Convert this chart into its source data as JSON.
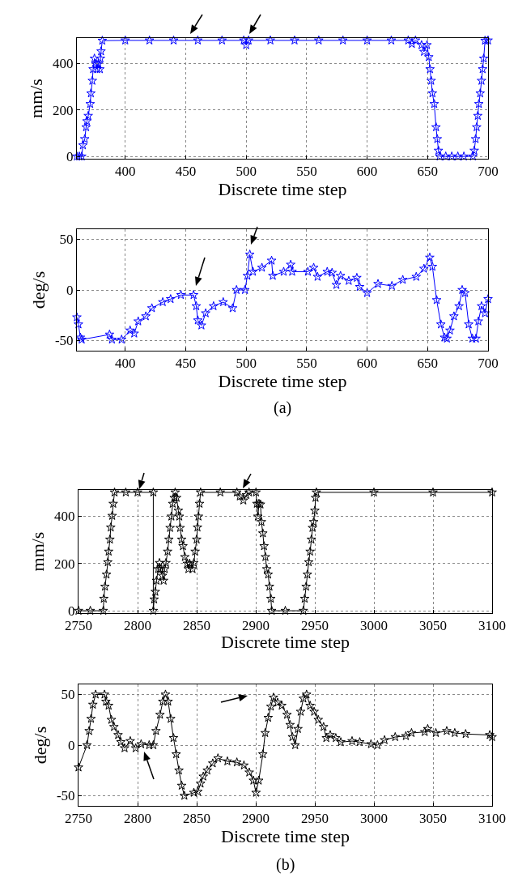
{
  "chart_data": [
    {
      "type": "line",
      "xlabel": "Discrete time step",
      "ylabel": "mm/s",
      "xlim": [
        360,
        700
      ],
      "xticks": [
        400,
        450,
        500,
        550,
        600,
        650,
        700
      ],
      "ylim": [
        -10,
        510
      ],
      "yticks": [
        0,
        200,
        400
      ],
      "grid": true,
      "marker": "star",
      "line_style": "solid",
      "series": [
        {
          "color": "#0000ff",
          "x": [
            360,
            362,
            364,
            365,
            366.5,
            367.6,
            368.3,
            369.4,
            371,
            371.6,
            372.8,
            373.4,
            374.5,
            375.7,
            376.8,
            377.7,
            379,
            379.5,
            380,
            381,
            400,
            420,
            440,
            460,
            480,
            498,
            500,
            502,
            520,
            540,
            560,
            580,
            600,
            620,
            634,
            637,
            640,
            645,
            647,
            649.5,
            651,
            652,
            653,
            654,
            655.5,
            657,
            658,
            659,
            660,
            665,
            670,
            675,
            680,
            687.5,
            688.6,
            689.7,
            690.6,
            691.5,
            692.4,
            693.5,
            694.6,
            695.5,
            696.4,
            697.5,
            700
          ],
          "values": [
            0,
            0,
            0,
            48,
            75,
            126,
            152,
            175,
            226,
            272,
            326,
            376,
            422,
            399,
            376,
            399,
            376,
            422,
            453,
            499,
            500,
            500,
            500,
            500,
            500,
            500,
            480,
            500,
            500,
            500,
            500,
            500,
            500,
            500,
            500,
            485,
            500,
            480,
            451,
            480,
            428,
            376,
            326,
            272,
            226,
            126,
            75,
            25,
            0,
            0,
            0,
            0,
            0,
            0,
            25,
            75,
            126,
            175,
            226,
            272,
            326,
            376,
            422,
            499,
            500
          ]
        }
      ]
    },
    {
      "type": "line",
      "xlabel": "Discrete time step",
      "ylabel": "deg/s",
      "xlim": [
        360,
        700
      ],
      "xticks": [
        400,
        450,
        500,
        550,
        600,
        650,
        700
      ],
      "ylim": [
        -60,
        60
      ],
      "yticks": [
        -50,
        0,
        50
      ],
      "grid": true,
      "marker": "star",
      "line_style": "solid",
      "series": [
        {
          "color": "#0000ff",
          "x": [
            360,
            361.3,
            362.9,
            364,
            387,
            389,
            397,
            404,
            407.4,
            410.7,
            417,
            422,
            431,
            437.5,
            446,
            456.5,
            458.7,
            460,
            463,
            466.5,
            473,
            481,
            488.8,
            492,
            499,
            501,
            503,
            505.6,
            513,
            521,
            522,
            531,
            536.8,
            538,
            551,
            555.8,
            559,
            567,
            571,
            574.6,
            578,
            584.8,
            591.5,
            593.8,
            600,
            609,
            620.5,
            629.5,
            640.6,
            647,
            651.8,
            654,
            657.5,
            661,
            664,
            666,
            668.5,
            671.8,
            676,
            678.6,
            681,
            684,
            687,
            690,
            692,
            694.6,
            697.5,
            700
          ],
          "values": [
            -27,
            -34,
            -47,
            -49,
            -44,
            -49,
            -49,
            -40,
            -43,
            -31,
            -26,
            -18,
            -12,
            -9,
            -5,
            -5,
            -16,
            -30,
            -35,
            -23,
            -16,
            -12,
            -18,
            0,
            0,
            14,
            35,
            18,
            22,
            29,
            14,
            18,
            25,
            18,
            18,
            22,
            13,
            18,
            17,
            5,
            14,
            9,
            12,
            3,
            -3,
            6,
            4,
            10,
            13,
            21,
            32,
            23,
            -10,
            -34,
            -47,
            -48,
            -40,
            -26,
            -16,
            0,
            -3,
            -34,
            -48,
            -48,
            -31,
            -16,
            -23,
            -9
          ]
        }
      ],
      "annotations": [
        "(a)"
      ]
    },
    {
      "type": "line",
      "xlabel": "Discrete time step",
      "ylabel": "mm/s",
      "xlim": [
        2750,
        3100
      ],
      "xticks": [
        2750,
        2800,
        2850,
        2900,
        2950,
        3000,
        3050,
        3100
      ],
      "ylim": [
        -10,
        510
      ],
      "yticks": [
        0,
        200,
        400
      ],
      "grid": true,
      "marker": "star",
      "line_style": "solid",
      "series": [
        {
          "color": "#000000",
          "x": [
            2750,
            2760,
            2771,
            2771.4,
            2772.4,
            2773.7,
            2774.8,
            2775.5,
            2776.6,
            2777.3,
            2778.5,
            2779.4,
            2780.5,
            2790,
            2800,
            2813.3,
            2813.3,
            2814,
            2815,
            2816,
            2817.4,
            2818.5,
            2819.4,
            2821,
            2822,
            2823,
            2824,
            2825.4,
            2826.5,
            2827.5,
            2828.6,
            2829.7,
            2831,
            2831.8,
            2833,
            2834.5,
            2835.3,
            2836,
            2837.3,
            2838.4,
            2840,
            2842,
            2843,
            2844,
            2846.5,
            2847.6,
            2848.7,
            2850,
            2850.7,
            2851.5,
            2852.4,
            2853.3,
            2870,
            2884,
            2886.5,
            2889.5,
            2892,
            2894.3,
            2900.2,
            2900.9,
            2901.8,
            2902.7,
            2904,
            2904.8,
            2906,
            2907,
            2908.2,
            2909.3,
            2910.5,
            2911.6,
            2912.8,
            2913.5,
            2925,
            2940.3,
            2941.4,
            2942.6,
            2943.7,
            2944.8,
            2946,
            2947.1,
            2948,
            2949,
            2950,
            2950.6,
            2951.3,
            3000,
            3050,
            3100
          ],
          "values": [
            0,
            0,
            0,
            51,
            102,
            153,
            205,
            250,
            301,
            352,
            401,
            452,
            500,
            500,
            500,
            500,
            0,
            48,
            80,
            127,
            176,
            202,
            176,
            148,
            127,
            176,
            202,
            250,
            301,
            350,
            398,
            452,
            477,
            500,
            477,
            423,
            398,
            350,
            301,
            273,
            227,
            199,
            176,
            199,
            176,
            202,
            250,
            301,
            352,
            398,
            452,
            500,
            500,
            500,
            483,
            466,
            489,
            500,
            500,
            452,
            398,
            452,
            449,
            375,
            327,
            273,
            227,
            176,
            153,
            102,
            51,
            0,
            0,
            0,
            51,
            102,
            153,
            205,
            250,
            301,
            350,
            375,
            423,
            477,
            500,
            500,
            500,
            500
          ]
        }
      ]
    },
    {
      "type": "line",
      "xlabel": "Discrete time step",
      "ylabel": "deg/s",
      "xlim": [
        2750,
        3100
      ],
      "xticks": [
        2750,
        2800,
        2850,
        2900,
        2950,
        3000,
        3050,
        3100
      ],
      "ylim": [
        -60,
        60
      ],
      "yticks": [
        -50,
        0,
        50
      ],
      "grid": true,
      "marker": "star",
      "line_style": "solid",
      "series": [
        {
          "color": "#000000",
          "x": [
            2750,
            2757.2,
            2759,
            2760.6,
            2762.2,
            2764.5,
            2772,
            2773.2,
            2775.5,
            2777.8,
            2780,
            2783.5,
            2785.8,
            2789,
            2793.8,
            2798.4,
            2803,
            2809.8,
            2813.3,
            2815.6,
            2819,
            2821.3,
            2823.6,
            2825.9,
            2828,
            2830.4,
            2832.7,
            2835,
            2837.3,
            2839.6,
            2847.6,
            2851,
            2853.3,
            2855.6,
            2859,
            2863.6,
            2868,
            2876,
            2884,
            2890,
            2894.5,
            2898,
            2900.2,
            2902.5,
            2906,
            2908,
            2910.5,
            2912.8,
            2915,
            2918.5,
            2922,
            2926.5,
            2929,
            2931,
            2933.4,
            2935.7,
            2938,
            2940.3,
            2943,
            2946,
            2949.4,
            2952.9,
            2957.4,
            2959.7,
            2963,
            2967.7,
            2972,
            2981.5,
            2988,
            2997.5,
            3003,
            3009,
            3018,
            3027,
            3031.8,
            3043,
            3045.5,
            3052.4,
            3061.6,
            3068.4,
            3077.6,
            3098,
            3100
          ],
          "values": [
            -22,
            0,
            14,
            26,
            40,
            50,
            50,
            43,
            39,
            25,
            18,
            10,
            3,
            -3,
            4,
            -3,
            1,
            0,
            0,
            14,
            30,
            43,
            50,
            43,
            26,
            7,
            -9,
            -25,
            -40,
            -50,
            -47,
            -46,
            -38,
            -31,
            -25,
            -18,
            -13,
            -16,
            -17,
            -20,
            -27,
            -35,
            -47,
            -35,
            -9,
            12,
            27,
            38,
            47,
            42,
            39,
            30,
            20,
            8,
            0,
            16,
            33,
            46,
            50,
            39,
            33,
            25,
            18,
            7,
            10,
            7,
            3,
            4,
            3,
            1,
            0,
            5,
            8,
            9,
            12,
            13,
            16,
            12,
            14,
            12,
            11,
            10,
            8
          ]
        }
      ],
      "annotations": [
        "(b)"
      ]
    }
  ]
}
